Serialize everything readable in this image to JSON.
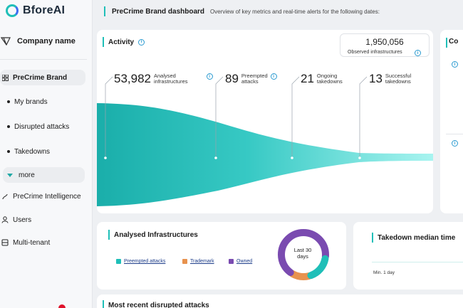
{
  "brand": {
    "name": "BforeAI"
  },
  "company": {
    "name": "Company name"
  },
  "nav": {
    "precrime_brand": "PreCrime Brand",
    "my_brands": "My brands",
    "disrupted_attacks": "Disrupted attacks",
    "takedowns": "Takedowns",
    "more": "more",
    "precrime_intelligence": "PreCrime Intelligence",
    "users": "Users",
    "multi_tenant": "Multi-tenant"
  },
  "header": {
    "title": "PreCrime Brand dashboard",
    "description": "Overview of key metrics and real-time alerts for the following dates:"
  },
  "activity": {
    "title": "Activity",
    "observed_value": "1,950,056",
    "observed_label": "Observed infrastructures",
    "metrics": [
      {
        "value": "53,982",
        "label_line1": "Analysed",
        "label_line2": "infrastructures"
      },
      {
        "value": "89",
        "label_line1": "Preempted",
        "label_line2": "attacks"
      },
      {
        "value": "21",
        "label_line1": "Ongoing",
        "label_line2": "takedowns"
      },
      {
        "value": "13",
        "label_line1": "Successful",
        "label_line2": "takedowns"
      }
    ]
  },
  "side_card": {
    "title": "Co"
  },
  "analysed": {
    "title": "Analysed Infrastructures",
    "legend": [
      {
        "label": "Preempted attacks",
        "color": "#1fbfb8"
      },
      {
        "label": "Trademark",
        "color": "#e8924e"
      },
      {
        "label": "Owned",
        "color": "#7a4bb0"
      }
    ],
    "donut_center_line1": "Last 30",
    "donut_center_line2": "days",
    "donut_shares": {
      "preempted": 0.18,
      "trademark": 0.14,
      "owned": 0.68
    }
  },
  "takedown_median": {
    "title": "Takedown median time",
    "min_label": "Min. 1 day"
  },
  "recent": {
    "title": "Most recent disrupted attacks"
  },
  "colors": {
    "accent": "#1fbfb8",
    "funnel_start": "#1aaeaa",
    "funnel_end": "#9ef4f0",
    "notification": "#e0122b"
  }
}
